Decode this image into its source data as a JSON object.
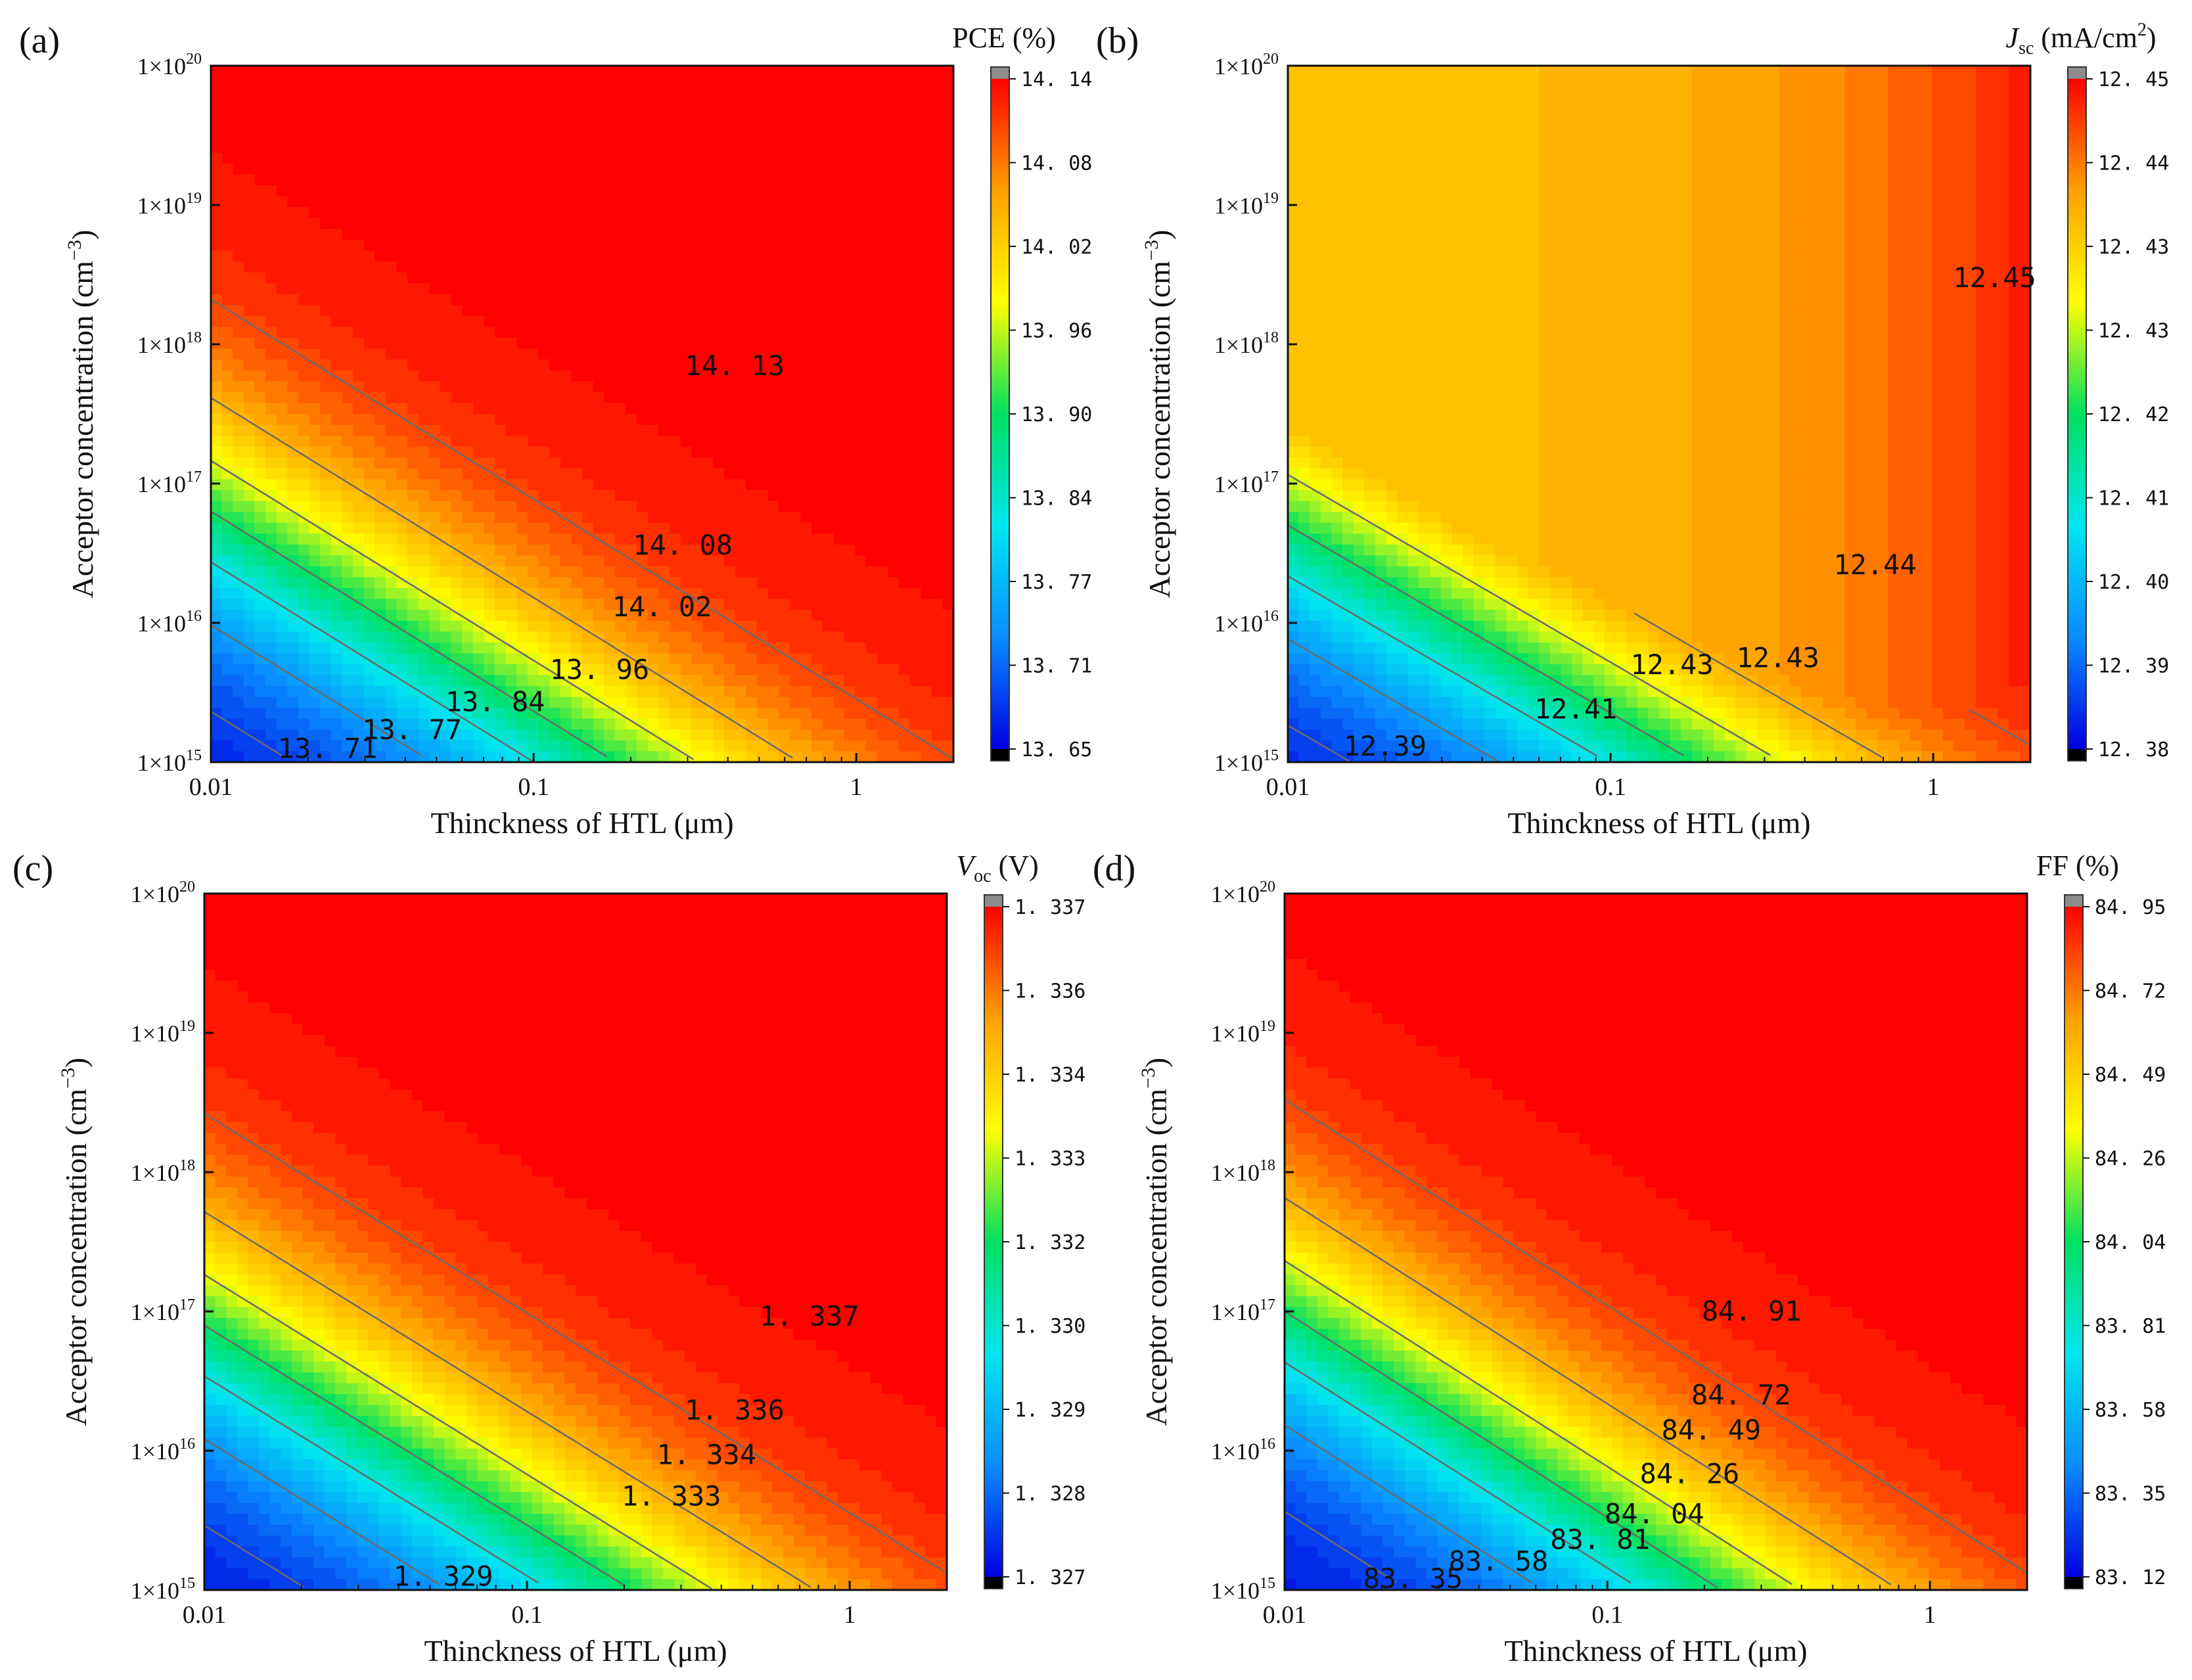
{
  "figure": {
    "x_axis_label": "Thinckness of HTL (μm)",
    "y_axis_label_prefix": "Acceptor concentration (cm",
    "y_axis_label_exp": "−3",
    "y_axis_label_suffix": ")",
    "colors": {
      "contour_line": "#6b6b6b",
      "overflow_high": "#8c8c8c",
      "overflow_low": "#000000",
      "ramp": [
        "#0000e0",
        "#0a8cff",
        "#00e6f0",
        "#00e060",
        "#ffff00",
        "#ffa000",
        "#ff0000"
      ]
    }
  },
  "chart_data": [
    {
      "type": "heatmap",
      "panel_label": "(a)",
      "title_parts": [
        {
          "text": "PCE (%)",
          "style": "normal"
        }
      ],
      "x_range_um": [
        0.01,
        2.0
      ],
      "x_scale": "log",
      "x_ticks": [
        {
          "value": 0.01,
          "label": "0.01"
        },
        {
          "value": 0.1,
          "label": "0.1"
        },
        {
          "value": 1,
          "label": "1"
        }
      ],
      "y_range_cm3": [
        1000000000000000.0,
        1e+20
      ],
      "y_scale": "log",
      "y_ticks": [
        {
          "mant": "1×10",
          "exp": "15"
        },
        {
          "mant": "1×10",
          "exp": "16"
        },
        {
          "mant": "1×10",
          "exp": "17"
        },
        {
          "mant": "1×10",
          "exp": "18"
        },
        {
          "mant": "1×10",
          "exp": "19"
        },
        {
          "mant": "1×10",
          "exp": "20"
        }
      ],
      "value_range": [
        13.65,
        14.14
      ],
      "colorbar_ticks": [
        "14. 14",
        "14. 08",
        "14. 02",
        "13. 96",
        "13. 90",
        "13. 84",
        "13. 77",
        "13. 71",
        "13. 65"
      ],
      "contour_labels": [
        {
          "text": "14. 13",
          "x_um": 0.42,
          "y_cm3": 7e+17
        },
        {
          "text": "14. 08",
          "x_um": 0.29,
          "y_cm3": 3.6e+16
        },
        {
          "text": "14. 02",
          "x_um": 0.25,
          "y_cm3": 1.3e+16
        },
        {
          "text": "13. 96",
          "x_um": 0.16,
          "y_cm3": 4600000000000000.0
        },
        {
          "text": "13. 84",
          "x_um": 0.076,
          "y_cm3": 2700000000000000.0
        },
        {
          "text": "13. 77",
          "x_um": 0.042,
          "y_cm3": 1700000000000000.0
        },
        {
          "text": "13. 71",
          "x_um": 0.023,
          "y_cm3": 1250000000000000.0
        }
      ]
    },
    {
      "type": "heatmap",
      "panel_label": "(b)",
      "title_parts": [
        {
          "text": "J",
          "style": "italic"
        },
        {
          "text": "sc",
          "style": "sub"
        },
        {
          "text": " (mA/cm",
          "style": "normal"
        },
        {
          "text": "2",
          "style": "sup"
        },
        {
          "text": ")",
          "style": "normal"
        }
      ],
      "x_range_um": [
        0.01,
        2.0
      ],
      "x_scale": "log",
      "x_ticks": [
        {
          "value": 0.01,
          "label": "0.01"
        },
        {
          "value": 0.1,
          "label": "0.1"
        },
        {
          "value": 1,
          "label": "1"
        }
      ],
      "y_range_cm3": [
        1000000000000000.0,
        1e+20
      ],
      "y_scale": "log",
      "y_ticks": [
        {
          "mant": "1×10",
          "exp": "15"
        },
        {
          "mant": "1×10",
          "exp": "16"
        },
        {
          "mant": "1×10",
          "exp": "17"
        },
        {
          "mant": "1×10",
          "exp": "18"
        },
        {
          "mant": "1×10",
          "exp": "19"
        },
        {
          "mant": "1×10",
          "exp": "20"
        }
      ],
      "value_range": [
        12.38,
        12.45
      ],
      "colorbar_ticks": [
        "12. 45",
        "12. 44",
        "12. 43",
        "12. 43",
        "12. 42",
        "12. 41",
        "12. 40",
        "12. 39",
        "12. 38"
      ],
      "contour_labels": [
        {
          "text": "12.45",
          "x_um": 1.55,
          "y_cm3": 3e+18
        },
        {
          "text": "12.44",
          "x_um": 0.66,
          "y_cm3": 2.6e+16
        },
        {
          "text": "12.43",
          "x_um": 0.33,
          "y_cm3": 5600000000000000.0
        },
        {
          "text": "12.43",
          "x_um": 0.155,
          "y_cm3": 5000000000000000.0
        },
        {
          "text": "12.41",
          "x_um": 0.078,
          "y_cm3": 2400000000000000.0
        },
        {
          "text": "12.39",
          "x_um": 0.02,
          "y_cm3": 1300000000000000.0
        }
      ]
    },
    {
      "type": "heatmap",
      "panel_label": "(c)",
      "title_parts": [
        {
          "text": "V",
          "style": "italic"
        },
        {
          "text": "oc",
          "style": "sub"
        },
        {
          "text": " (V)",
          "style": "normal"
        }
      ],
      "x_range_um": [
        0.01,
        2.0
      ],
      "x_scale": "log",
      "x_ticks": [
        {
          "value": 0.01,
          "label": "0.01"
        },
        {
          "value": 0.1,
          "label": "0.1"
        },
        {
          "value": 1,
          "label": "1"
        }
      ],
      "y_range_cm3": [
        1000000000000000.0,
        1e+20
      ],
      "y_scale": "log",
      "y_ticks": [
        {
          "mant": "1×10",
          "exp": "15"
        },
        {
          "mant": "1×10",
          "exp": "16"
        },
        {
          "mant": "1×10",
          "exp": "17"
        },
        {
          "mant": "1×10",
          "exp": "18"
        },
        {
          "mant": "1×10",
          "exp": "19"
        },
        {
          "mant": "1×10",
          "exp": "20"
        }
      ],
      "value_range": [
        1.327,
        1.337
      ],
      "colorbar_ticks": [
        "1. 337",
        "1. 336",
        "1. 334",
        "1. 333",
        "1. 332",
        "1. 330",
        "1. 329",
        "1. 328",
        "1. 327"
      ],
      "contour_labels": [
        {
          "text": "1. 337",
          "x_um": 0.75,
          "y_cm3": 9.2e+16
        },
        {
          "text": "1. 336",
          "x_um": 0.44,
          "y_cm3": 1.95e+16
        },
        {
          "text": "1. 334",
          "x_um": 0.36,
          "y_cm3": 9300000000000000.0
        },
        {
          "text": "1. 333",
          "x_um": 0.28,
          "y_cm3": 4700000000000000.0
        },
        {
          "text": "1. 329",
          "x_um": 0.055,
          "y_cm3": 1250000000000000.0
        }
      ]
    },
    {
      "type": "heatmap",
      "panel_label": "(d)",
      "title_parts": [
        {
          "text": "FF (%)",
          "style": "normal"
        }
      ],
      "x_range_um": [
        0.01,
        2.0
      ],
      "x_scale": "log",
      "x_ticks": [
        {
          "value": 0.01,
          "label": "0.01"
        },
        {
          "value": 0.1,
          "label": "0.1"
        },
        {
          "value": 1,
          "label": "1"
        }
      ],
      "y_range_cm3": [
        1000000000000000.0,
        1e+20
      ],
      "y_scale": "log",
      "y_ticks": [
        {
          "mant": "1×10",
          "exp": "15"
        },
        {
          "mant": "1×10",
          "exp": "16"
        },
        {
          "mant": "1×10",
          "exp": "17"
        },
        {
          "mant": "1×10",
          "exp": "18"
        },
        {
          "mant": "1×10",
          "exp": "19"
        },
        {
          "mant": "1×10",
          "exp": "20"
        }
      ],
      "value_range": [
        83.12,
        84.95
      ],
      "colorbar_ticks": [
        "84. 95",
        "84. 72",
        "84. 49",
        "84. 26",
        "84. 04",
        "83. 81",
        "83. 58",
        "83. 35",
        "83. 12"
      ],
      "contour_labels": [
        {
          "text": "84. 91",
          "x_um": 0.28,
          "y_cm3": 1e+17
        },
        {
          "text": "84. 72",
          "x_um": 0.26,
          "y_cm3": 2.5e+16
        },
        {
          "text": "84. 49",
          "x_um": 0.21,
          "y_cm3": 1.4e+16
        },
        {
          "text": "84. 26",
          "x_um": 0.18,
          "y_cm3": 6800000000000000.0
        },
        {
          "text": "84. 04",
          "x_um": 0.14,
          "y_cm3": 3500000000000000.0
        },
        {
          "text": "83. 81",
          "x_um": 0.095,
          "y_cm3": 2300000000000000.0
        },
        {
          "text": "83. 58",
          "x_um": 0.046,
          "y_cm3": 1600000000000000.0
        },
        {
          "text": "83. 35",
          "x_um": 0.025,
          "y_cm3": 1200000000000000.0
        }
      ]
    }
  ]
}
